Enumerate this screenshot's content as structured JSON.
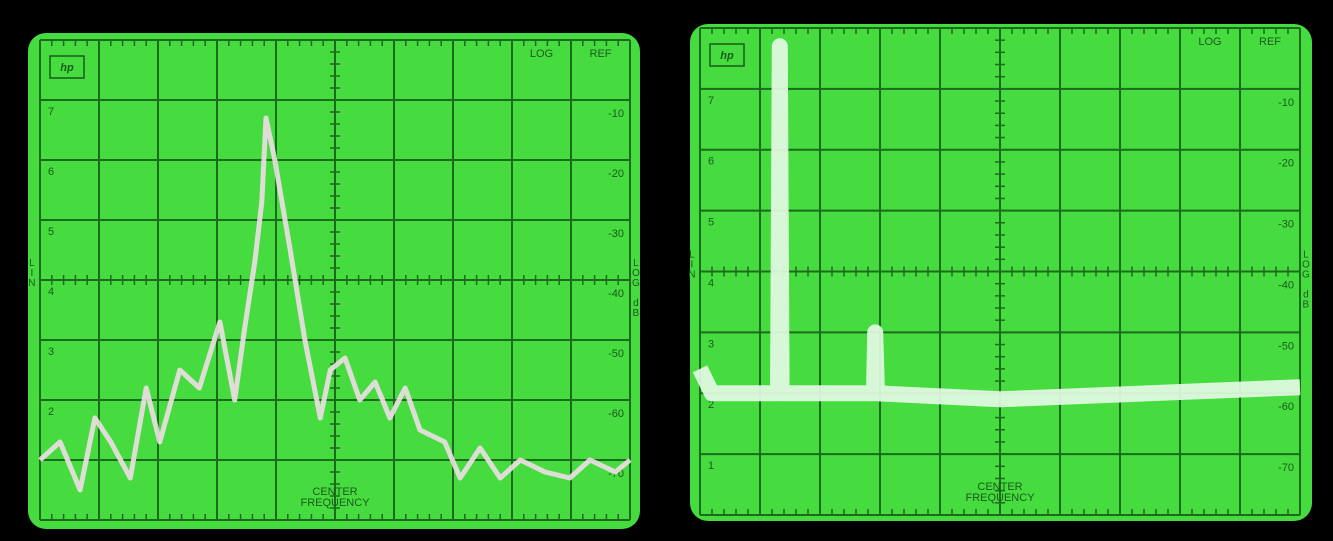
{
  "screens": [
    {
      "logo": "hp",
      "log": "LOG",
      "ref": "REF",
      "left_axis": "LIN",
      "right_axis": "LOG dB",
      "center": [
        "CENTER",
        "FREQUENCY"
      ],
      "lin_labels": [
        "7",
        "6",
        "5",
        "4",
        "3",
        "2"
      ],
      "db_labels": [
        "-10",
        "-20",
        "-30",
        "-40",
        "-50",
        "-60",
        "-70"
      ],
      "x_lim": [
        0,
        10
      ],
      "db_lim": [
        0,
        -80
      ],
      "trace": {
        "x": [
          0,
          0.34,
          0.68,
          0.93,
          1.2,
          1.53,
          1.8,
          2.03,
          2.37,
          2.7,
          3.05,
          3.3,
          3.47,
          3.64,
          3.76,
          3.83,
          3.98,
          4.24,
          4.49,
          4.75,
          4.92,
          5.17,
          5.42,
          5.68,
          5.93,
          6.19,
          6.44,
          6.86,
          7.12,
          7.46,
          7.8,
          8.14,
          8.56,
          8.98,
          9.32,
          9.75,
          10
        ],
        "db": [
          -70,
          -67,
          -75,
          -63,
          -67,
          -73,
          -58,
          -67,
          -55,
          -58,
          -47,
          -60,
          -48,
          -37,
          -27,
          -13,
          -20,
          -35,
          -50,
          -63,
          -55,
          -53,
          -60,
          -57,
          -63,
          -58,
          -65,
          -67,
          -73,
          -68,
          -73,
          -70,
          -72,
          -73,
          -70,
          -72,
          -70
        ]
      }
    },
    {
      "logo": "hp",
      "log": "LOG",
      "ref": "REF",
      "left_axis": "LIN",
      "right_axis": "LOG dB",
      "center": [
        "CENTER",
        "FREQUENCY"
      ],
      "lin_labels": [
        "7",
        "6",
        "5",
        "4",
        "3",
        "2",
        "1"
      ],
      "db_labels": [
        "-10",
        "-20",
        "-30",
        "-40",
        "-50",
        "-60",
        "-70"
      ],
      "x_lim": [
        0,
        10
      ],
      "db_lim": [
        0,
        -80
      ],
      "trace": {
        "x": [
          0,
          0.2,
          1.3,
          1.33,
          1.36,
          2.9,
          2.92,
          2.95,
          5,
          10
        ],
        "db": [
          -56,
          -60,
          -60,
          -3,
          -60,
          -60,
          -50,
          -60,
          -61,
          -59
        ]
      }
    }
  ]
}
